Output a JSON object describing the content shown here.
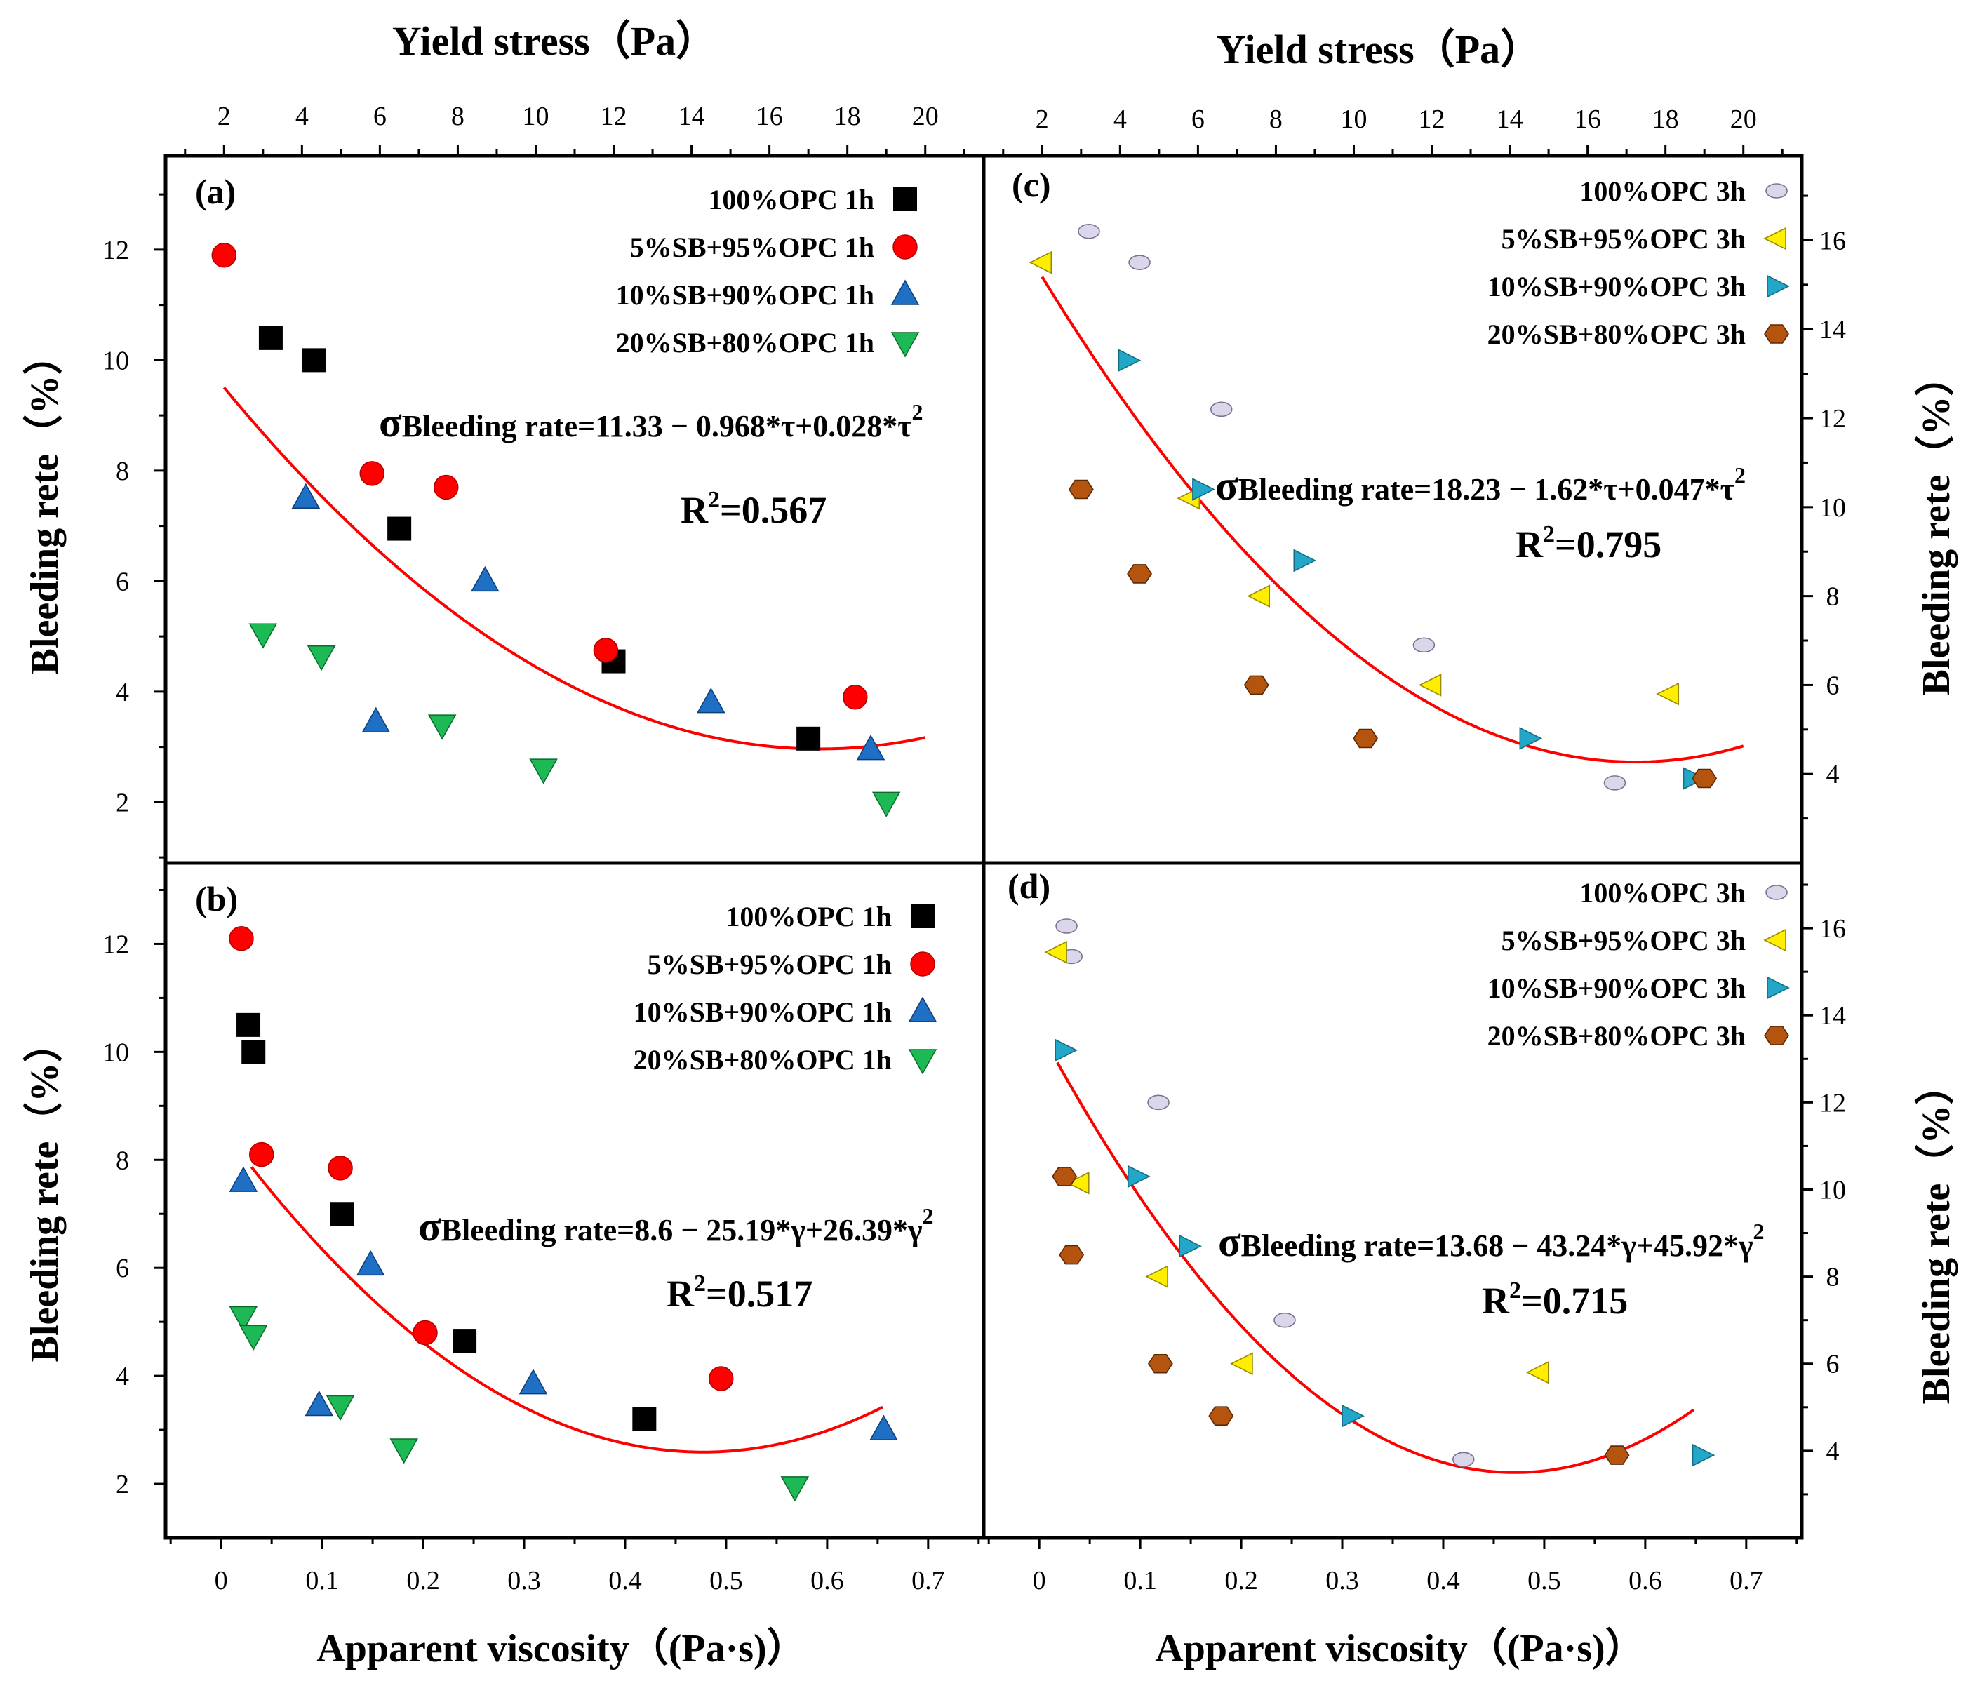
{
  "figure": {
    "top_axis_label": "Yield stress（Pa）",
    "bottom_axis_label": "Apparent viscosity（(Pa·s)）",
    "left_axis_label": "Bleeding rete（%）",
    "right_axis_label": "Bleeding rete（%）"
  },
  "colors": {
    "black": "#000000",
    "red": "#ff0000",
    "blue": "#1f6fc4",
    "green": "#1db954",
    "lavender": "#dcd6ea",
    "yellow": "#ffee00",
    "cyan": "#22a7c9",
    "brown": "#b5540f",
    "fit": "#ff0000"
  },
  "chart_data": [
    {
      "panel": "(a)",
      "type": "scatter",
      "x_axis": "Yield stress (Pa)",
      "y_axis": "Bleeding rete (%)",
      "xlim": [
        0.5,
        21.5
      ],
      "ylim": [
        0.9,
        13.7
      ],
      "xticks": [
        2,
        4,
        6,
        8,
        10,
        12,
        14,
        16,
        18,
        20
      ],
      "yticks": [
        2,
        4,
        6,
        8,
        10,
        12
      ],
      "series": [
        {
          "name": "100%OPC 1h",
          "marker": "square",
          "color": "#000000",
          "x": [
            3.2,
            4.3,
            6.5,
            12.0,
            17.0
          ],
          "y": [
            10.4,
            10.0,
            6.95,
            4.55,
            3.15
          ]
        },
        {
          "name": "5%SB+95%OPC 1h",
          "marker": "circle",
          "color": "#ff0000",
          "x": [
            2.0,
            5.8,
            7.7,
            11.8,
            18.2
          ],
          "y": [
            11.9,
            7.95,
            7.7,
            4.75,
            3.9
          ]
        },
        {
          "name": "10%SB+90%OPC 1h",
          "marker": "triangle-up",
          "color": "#1f6fc4",
          "x": [
            4.1,
            5.9,
            8.7,
            14.5,
            18.6
          ],
          "y": [
            7.5,
            3.45,
            6.0,
            3.8,
            2.95
          ]
        },
        {
          "name": "20%SB+80%OPC 1h",
          "marker": "triangle-down",
          "color": "#1db954",
          "x": [
            3.0,
            4.5,
            7.6,
            10.2,
            19.0
          ],
          "y": [
            5.05,
            4.65,
            3.4,
            2.6,
            2.0
          ]
        }
      ],
      "fit": {
        "a": 11.33,
        "b": -0.968,
        "c": 0.028,
        "x_range": [
          2,
          20
        ]
      },
      "equation": {
        "sigma": "σ",
        "text": "Bleeding rate=11.33 − 0.968*τ+0.028*τ",
        "sup": "2"
      },
      "r2": {
        "prefix": "R",
        "sup": "2",
        "value": "=0.567"
      }
    },
    {
      "panel": "(b)",
      "type": "scatter",
      "x_axis": "Apparent viscosity (Pa·s)",
      "y_axis": "Bleeding rete (%)",
      "xlim": [
        -0.055,
        0.755
      ],
      "ylim": [
        1.0,
        13.5
      ],
      "xticks": [
        0,
        0.1,
        0.2,
        0.3,
        0.4,
        0.5,
        0.6,
        0.7
      ],
      "yticks": [
        2,
        4,
        6,
        8,
        10,
        12
      ],
      "series": [
        {
          "name": "100%OPC 1h",
          "marker": "square",
          "color": "#000000",
          "x": [
            0.027,
            0.032,
            0.12,
            0.241,
            0.419
          ],
          "y": [
            10.5,
            10.0,
            7.0,
            4.65,
            3.2
          ]
        },
        {
          "name": "5%SB+95%OPC 1h",
          "marker": "circle",
          "color": "#ff0000",
          "x": [
            0.02,
            0.04,
            0.118,
            0.202,
            0.495
          ],
          "y": [
            12.1,
            8.1,
            7.85,
            4.8,
            3.95
          ]
        },
        {
          "name": "10%SB+90%OPC 1h",
          "marker": "triangle-up",
          "color": "#1f6fc4",
          "x": [
            0.022,
            0.097,
            0.148,
            0.309,
            0.656
          ],
          "y": [
            7.6,
            3.45,
            6.05,
            3.85,
            3.0
          ]
        },
        {
          "name": "20%SB+80%OPC 1h",
          "marker": "triangle-down",
          "color": "#1db954",
          "x": [
            0.022,
            0.032,
            0.118,
            0.181,
            0.568
          ],
          "y": [
            5.1,
            4.75,
            3.45,
            2.65,
            1.95
          ]
        }
      ],
      "fit": {
        "a": 8.6,
        "b": -25.19,
        "c": 26.39,
        "x_range": [
          0.03,
          0.655
        ]
      },
      "equation": {
        "sigma": "σ",
        "text": "Bleeding rate=8.6 − 25.19*γ+26.39*γ",
        "sup": "2"
      },
      "r2": {
        "prefix": "R",
        "sup": "2",
        "value": "=0.517"
      }
    },
    {
      "panel": "(c)",
      "type": "scatter",
      "x_axis": "Yield stress (Pa)",
      "y_axis": "Bleeding rete (%)",
      "xlim": [
        0.5,
        21.5
      ],
      "ylim": [
        2.0,
        17.9
      ],
      "xticks": [
        2,
        4,
        6,
        8,
        10,
        12,
        14,
        16,
        18,
        20
      ],
      "yticks": [
        4,
        6,
        8,
        10,
        12,
        14,
        16
      ],
      "series": [
        {
          "name": "100%OPC 3h",
          "marker": "ellipse",
          "color": "#dcd6ea",
          "x": [
            3.2,
            4.5,
            6.6,
            11.8,
            16.7
          ],
          "y": [
            16.2,
            15.5,
            12.2,
            6.9,
            3.8
          ]
        },
        {
          "name": "5%SB+95%OPC 3h",
          "marker": "triangle-left",
          "color": "#ffee00",
          "x": [
            2.0,
            5.8,
            7.6,
            12.0,
            18.1
          ],
          "y": [
            15.5,
            10.2,
            8.0,
            6.0,
            5.8
          ]
        },
        {
          "name": "10%SB+90%OPC 3h",
          "marker": "triangle-right",
          "color": "#22a7c9",
          "x": [
            4.2,
            6.1,
            8.7,
            14.5,
            18.7
          ],
          "y": [
            13.3,
            10.4,
            8.8,
            4.8,
            3.9
          ]
        },
        {
          "name": "20%SB+80%OPC 3h",
          "marker": "hexagon",
          "color": "#b5540f",
          "x": [
            3.0,
            4.5,
            7.5,
            10.3,
            19.0
          ],
          "y": [
            10.4,
            8.5,
            6.0,
            4.8,
            3.9
          ]
        }
      ],
      "fit": {
        "a": 18.23,
        "b": -1.62,
        "c": 0.047,
        "x_range": [
          2,
          20
        ]
      },
      "equation": {
        "sigma": "σ",
        "text": "Bleeding rate=18.23 − 1.62*τ+0.047*τ",
        "sup": "2"
      },
      "r2": {
        "prefix": "R",
        "sup": "2",
        "value": "=0.795"
      }
    },
    {
      "panel": "(d)",
      "type": "scatter",
      "x_axis": "Apparent viscosity (Pa·s)",
      "y_axis": "Bleeding rete (%)",
      "xlim": [
        -0.055,
        0.755
      ],
      "ylim": [
        2.0,
        17.5
      ],
      "xticks": [
        0,
        0.1,
        0.2,
        0.3,
        0.4,
        0.5,
        0.6,
        0.7
      ],
      "yticks": [
        4,
        6,
        8,
        10,
        12,
        14,
        16
      ],
      "series": [
        {
          "name": "100%OPC 3h",
          "marker": "ellipse",
          "color": "#dcd6ea",
          "x": [
            0.027,
            0.032,
            0.118,
            0.243,
            0.42
          ],
          "y": [
            16.05,
            15.35,
            12.0,
            7.0,
            3.8
          ]
        },
        {
          "name": "5%SB+95%OPC 3h",
          "marker": "triangle-left",
          "color": "#ffee00",
          "x": [
            0.018,
            0.04,
            0.118,
            0.202,
            0.495
          ],
          "y": [
            15.45,
            10.15,
            8.0,
            6.0,
            5.8
          ]
        },
        {
          "name": "10%SB+90%OPC 3h",
          "marker": "triangle-right",
          "color": "#22a7c9",
          "x": [
            0.025,
            0.097,
            0.148,
            0.309,
            0.656
          ],
          "y": [
            13.2,
            10.3,
            8.7,
            4.8,
            3.9
          ]
        },
        {
          "name": "20%SB+80%OPC 3h",
          "marker": "hexagon",
          "color": "#b5540f",
          "x": [
            0.025,
            0.032,
            0.12,
            0.18,
            0.572
          ],
          "y": [
            10.3,
            8.5,
            6.0,
            4.8,
            3.9
          ]
        }
      ],
      "fit": {
        "a": 13.68,
        "b": -43.24,
        "c": 45.92,
        "x_range": [
          0.018,
          0.648
        ]
      },
      "equation": {
        "sigma": "σ",
        "text": "Bleeding rate=13.68 − 43.24*γ+45.92*γ",
        "sup": "2"
      },
      "r2": {
        "prefix": "R",
        "sup": "2",
        "value": "=0.715"
      }
    }
  ]
}
